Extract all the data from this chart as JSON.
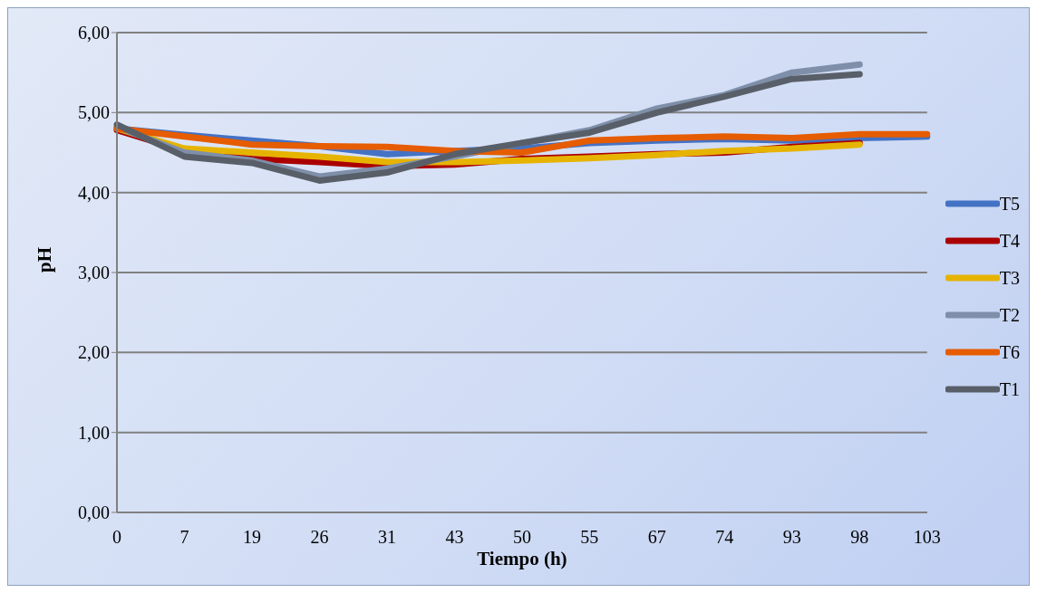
{
  "chart_data": {
    "type": "line",
    "xlabel": "Tiempo (h)",
    "ylabel": "pH",
    "categories": [
      "0",
      "7",
      "19",
      "26",
      "31",
      "43",
      "50",
      "55",
      "67",
      "74",
      "93",
      "98",
      "103"
    ],
    "series": [
      {
        "name": "T5",
        "color": "#4472c4",
        "values": [
          4.8,
          4.72,
          4.65,
          4.58,
          4.48,
          4.52,
          4.55,
          4.62,
          4.65,
          4.67,
          4.65,
          4.68,
          4.7
        ]
      },
      {
        "name": "T4",
        "color": "#aa0000",
        "values": [
          4.78,
          4.52,
          4.42,
          4.38,
          4.33,
          4.35,
          4.42,
          4.45,
          4.48,
          4.5,
          4.57,
          4.62,
          null
        ]
      },
      {
        "name": "T3",
        "color": "#e6b400",
        "values": [
          4.8,
          4.55,
          4.5,
          4.45,
          4.38,
          4.38,
          4.4,
          4.43,
          4.47,
          4.52,
          4.55,
          4.6,
          null
        ]
      },
      {
        "name": "T2",
        "color": "#7f8faa",
        "values": [
          4.82,
          4.5,
          4.4,
          4.2,
          4.3,
          4.45,
          4.62,
          4.78,
          5.05,
          5.22,
          5.5,
          5.6,
          null
        ]
      },
      {
        "name": "T6",
        "color": "#e65c00",
        "values": [
          4.8,
          4.7,
          4.6,
          4.58,
          4.57,
          4.52,
          4.5,
          4.65,
          4.68,
          4.7,
          4.68,
          4.73,
          4.73
        ]
      },
      {
        "name": "T1",
        "color": "#595f68",
        "values": [
          4.85,
          4.45,
          4.37,
          4.15,
          4.25,
          4.48,
          4.62,
          4.75,
          5.0,
          5.2,
          5.42,
          5.48,
          null
        ]
      }
    ],
    "ylim": [
      0,
      6
    ],
    "yticks": [
      {
        "value": 0,
        "label": "0,00"
      },
      {
        "value": 1,
        "label": "1,00"
      },
      {
        "value": 2,
        "label": "2,00"
      },
      {
        "value": 3,
        "label": "3,00"
      },
      {
        "value": 4,
        "label": "4,00"
      },
      {
        "value": 5,
        "label": "5,00"
      },
      {
        "value": 6,
        "label": "6,00"
      }
    ],
    "grid": "y",
    "legend": "right",
    "marker": "none",
    "line_style": "solid"
  }
}
